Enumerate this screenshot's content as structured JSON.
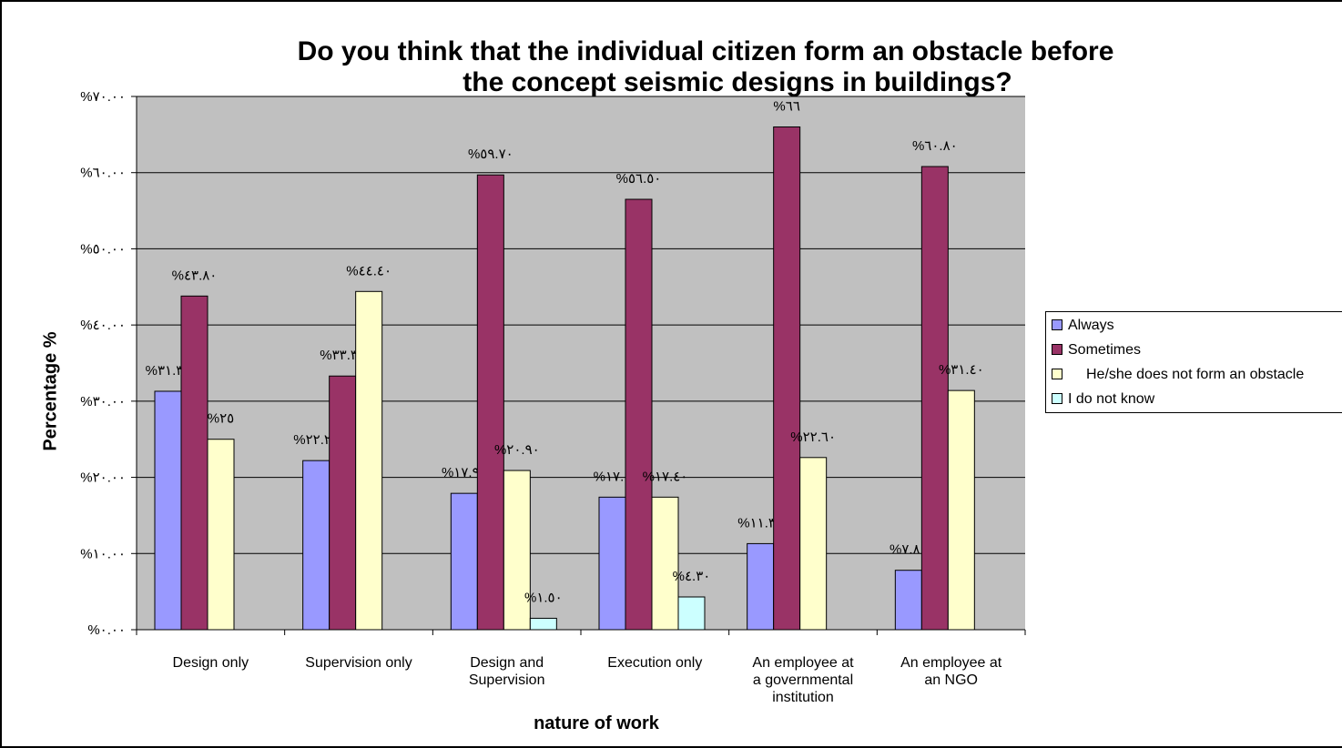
{
  "chart_data": {
    "type": "bar",
    "title": "Do you think that the individual citizen form an obstacle before the concept seismic designs in buildings?",
    "title_lines": [
      "Do you think that the individual citizen form an obstacle before",
      "the concept seismic designs in buildings?"
    ],
    "xlabel": "nature of work",
    "ylabel": "Percentage %",
    "ylim": [
      0,
      70
    ],
    "yticks": [
      {
        "value": 0,
        "label": "%٠.٠٠"
      },
      {
        "value": 10,
        "label": "%١٠.٠٠"
      },
      {
        "value": 20,
        "label": "%٢٠.٠٠"
      },
      {
        "value": 30,
        "label": "%٣٠.٠٠"
      },
      {
        "value": 40,
        "label": "%٤٠.٠٠"
      },
      {
        "value": 50,
        "label": "%٥٠.٠٠"
      },
      {
        "value": 60,
        "label": "%٦٠.٠٠"
      },
      {
        "value": 70,
        "label": "%٧٠.٠٠"
      }
    ],
    "grid": true,
    "legend_position": "right",
    "plot_background": "#c0c0c0",
    "categories": [
      [
        "Design only"
      ],
      [
        "Supervision only"
      ],
      [
        "Design and",
        "Supervision"
      ],
      [
        "Execution only"
      ],
      [
        "An  employee at",
        "a governmental",
        "institution"
      ],
      [
        "An  employee at",
        "an NGO"
      ]
    ],
    "series": [
      {
        "name": "Always",
        "color": "#9999ff",
        "values": [
          31.3,
          22.2,
          17.9,
          17.4,
          11.3,
          7.8
        ],
        "labels": [
          "%٣١.٣٠",
          "%٢٢.٢٠",
          "%١٧.٩٠",
          "%١٧.٤",
          "%١١.٣٠",
          "%٧.٨٠"
        ]
      },
      {
        "name": "Sometimes",
        "color": "#993366",
        "values": [
          43.8,
          33.3,
          59.7,
          56.5,
          66,
          60.8
        ],
        "labels": [
          "%٤٣.٨٠",
          "%٣٣.٣٠",
          "%٥٩.٧٠",
          "%٥٦.٥٠",
          "%٦٦",
          "%٦٠.٨٠"
        ]
      },
      {
        "name": "He/she does not form an obstacle",
        "color": "#ffffcc",
        "values": [
          25,
          44.4,
          20.9,
          17.4,
          22.6,
          31.4
        ],
        "labels": [
          "%٢٥",
          "%٤٤.٤٠",
          "%٢٠.٩٠",
          "%١٧.٤٠",
          "%٢٢.٦٠",
          "%٣١.٤٠"
        ]
      },
      {
        "name": "I do not know",
        "color": "#ccffff",
        "values": [
          null,
          null,
          1.5,
          4.3,
          null,
          null
        ],
        "labels": [
          "",
          "",
          "%١.٥٠",
          "%٤.٣٠",
          "",
          ""
        ]
      }
    ]
  }
}
